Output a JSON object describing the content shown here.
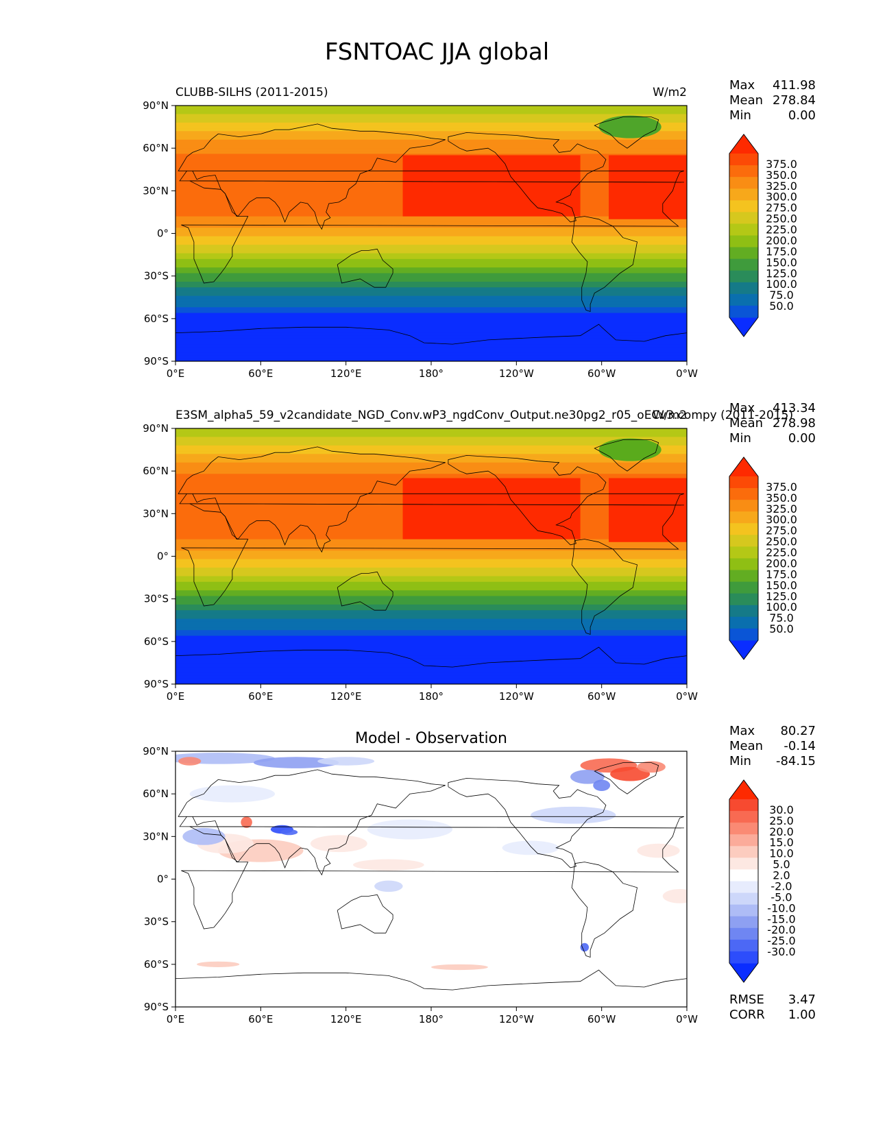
{
  "figure_title": "FSNTOAC JJA global",
  "colors": {
    "main_levels": [
      "#0a2dff",
      "#0a55d6",
      "#0a6fae",
      "#157a88",
      "#2a8c5a",
      "#3f9b3c",
      "#62ad22",
      "#8fbf14",
      "#b4c816",
      "#d6c81e",
      "#f4c31f",
      "#f7a81b",
      "#f98d14",
      "#fb6c0c",
      "#fc4a06",
      "#fe2a00"
    ],
    "diff_levels": [
      "#0a2dff",
      "#2d4dfb",
      "#4c68f5",
      "#6f86f2",
      "#8ea0f2",
      "#aebcf6",
      "#cdd7fa",
      "#e7ecfd",
      "#ffffff",
      "#fde8e2",
      "#fcccbf",
      "#fbab9a",
      "#fa8a74",
      "#f86a52",
      "#f74a30",
      "#fe2a00"
    ],
    "coast": "#000000"
  },
  "panels": [
    {
      "id": "test",
      "title_left": "CLUBB-SILHS (2011-2015)",
      "title_center": "",
      "title_right": "W/m2",
      "stats": [
        [
          "Max",
          "411.98"
        ],
        [
          "Mean",
          "278.84"
        ],
        [
          "Min",
          "0.00"
        ]
      ],
      "colorbar_labels": [
        "375.0",
        "350.0",
        "325.0",
        "300.0",
        "275.0",
        "250.0",
        "225.0",
        "200.0",
        "175.0",
        "150.0",
        "125.0",
        "100.0",
        "75.0",
        "50.0"
      ],
      "extra_stats": []
    },
    {
      "id": "reference",
      "title_left": "E3SM_alpha5_59_v2candidate_NGD_Conv.wP3_ngdConv_Output.ne30pg2_r05_oECv3.compy (2011-2015)",
      "title_center": "",
      "title_right": "W/m2",
      "stats": [
        [
          "Max",
          "413.34"
        ],
        [
          "Mean",
          "278.98"
        ],
        [
          "Min",
          "0.00"
        ]
      ],
      "colorbar_labels": [
        "375.0",
        "350.0",
        "325.0",
        "300.0",
        "275.0",
        "250.0",
        "225.0",
        "200.0",
        "175.0",
        "150.0",
        "125.0",
        "100.0",
        "75.0",
        "50.0"
      ],
      "extra_stats": []
    },
    {
      "id": "difference",
      "title_left": "",
      "title_center": "Model - Observation",
      "title_right": "",
      "stats": [
        [
          "Max",
          "80.27"
        ],
        [
          "Mean",
          "-0.14"
        ],
        [
          "Min",
          "-84.15"
        ]
      ],
      "colorbar_labels": [
        "30.0",
        "25.0",
        "20.0",
        "15.0",
        "10.0",
        "5.0",
        "2.0",
        "-2.0",
        "-5.0",
        "-10.0",
        "-15.0",
        "-20.0",
        "-25.0",
        "-30.0"
      ],
      "extra_stats": [
        [
          "RMSE",
          "3.47"
        ],
        [
          "CORR",
          "1.00"
        ]
      ]
    }
  ],
  "chart_data": [
    {
      "type": "heatmap",
      "title": "CLUBB-SILHS (2011-2015)",
      "units": "W/m2",
      "x_ticks": [
        "0°E",
        "60°E",
        "120°E",
        "180°",
        "120°W",
        "60°W",
        "0°W"
      ],
      "y_ticks": [
        "90°N",
        "60°N",
        "30°N",
        "0°",
        "30°S",
        "60°S",
        "90°S"
      ],
      "xlim": [
        0,
        360
      ],
      "ylim": [
        -90,
        90
      ],
      "levels": [
        50,
        75,
        100,
        125,
        150,
        175,
        200,
        225,
        250,
        275,
        300,
        325,
        350,
        375
      ],
      "zonal_mean_profile": {
        "lat": [
          90,
          80,
          70,
          60,
          45,
          30,
          15,
          0,
          -10,
          -20,
          -30,
          -40,
          -50,
          -55,
          -60,
          -90
        ],
        "value": [
          225,
          265,
          310,
          345,
          365,
          372,
          360,
          310,
          265,
          215,
          165,
          115,
          80,
          55,
          0,
          0
        ]
      },
      "max": 411.98,
      "mean": 278.84,
      "min": 0.0
    },
    {
      "type": "heatmap",
      "title": "E3SM_alpha5_59_v2candidate_NGD_Conv.wP3_ngdConv_Output.ne30pg2_r05_oECv3.compy (2011-2015)",
      "units": "W/m2",
      "x_ticks": [
        "0°E",
        "60°E",
        "120°E",
        "180°",
        "120°W",
        "60°W",
        "0°W"
      ],
      "y_ticks": [
        "90°N",
        "60°N",
        "30°N",
        "0°",
        "30°S",
        "60°S",
        "90°S"
      ],
      "xlim": [
        0,
        360
      ],
      "ylim": [
        -90,
        90
      ],
      "levels": [
        50,
        75,
        100,
        125,
        150,
        175,
        200,
        225,
        250,
        275,
        300,
        325,
        350,
        375
      ],
      "zonal_mean_profile": {
        "lat": [
          90,
          80,
          70,
          60,
          45,
          30,
          15,
          0,
          -10,
          -20,
          -30,
          -40,
          -50,
          -55,
          -60,
          -90
        ],
        "value": [
          225,
          265,
          312,
          347,
          366,
          373,
          360,
          310,
          265,
          215,
          165,
          115,
          80,
          55,
          0,
          0
        ]
      },
      "max": 413.34,
      "mean": 278.98,
      "min": 0.0
    },
    {
      "type": "heatmap",
      "title": "Model - Observation",
      "x_ticks": [
        "0°E",
        "60°E",
        "120°E",
        "180°",
        "120°W",
        "60°W",
        "0°W"
      ],
      "y_ticks": [
        "90°N",
        "60°N",
        "30°N",
        "0°",
        "30°S",
        "60°S",
        "90°S"
      ],
      "xlim": [
        0,
        360
      ],
      "ylim": [
        -90,
        90
      ],
      "levels": [
        -30,
        -25,
        -20,
        -15,
        -10,
        -5,
        -2,
        2,
        5,
        10,
        15,
        20,
        25,
        30
      ],
      "max": 80.27,
      "mean": -0.14,
      "min": -84.15,
      "rmse": 3.47,
      "corr": 1.0
    }
  ]
}
